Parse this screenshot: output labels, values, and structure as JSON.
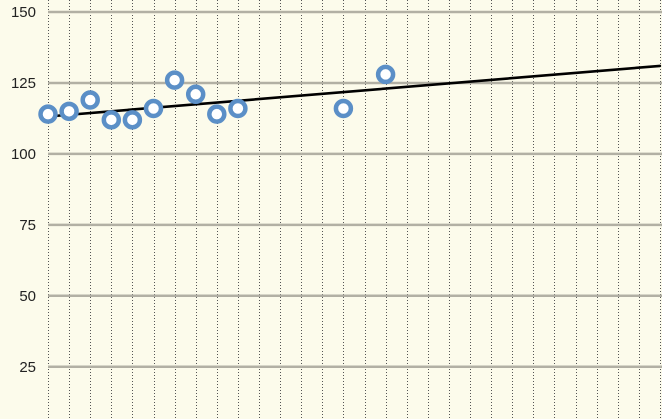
{
  "chart_data": {
    "type": "scatter",
    "title": "",
    "xlabel": "",
    "ylabel": "",
    "y_ticks": [
      "150",
      "125",
      "100",
      "75",
      "50",
      "25"
    ],
    "ylim": [
      0,
      150
    ],
    "xlim": [
      0,
      29
    ],
    "grid": true,
    "series": [
      {
        "x": [
          0,
          1,
          2,
          3,
          4,
          5,
          6,
          7,
          8,
          9,
          14,
          16
        ],
        "y": [
          114,
          115,
          119,
          112,
          112,
          116,
          126,
          121,
          114,
          116,
          116,
          128
        ]
      }
    ],
    "trendline": {
      "x": [
        0,
        29
      ],
      "y": [
        113,
        131
      ]
    },
    "colors": {
      "background": "#fcfbeb",
      "marker_stroke": "#5b8fc7",
      "marker_fill": "#ffffff",
      "trendline": "#000000",
      "major_grid": "#b2b0a4",
      "minor_grid": "#555555"
    }
  }
}
